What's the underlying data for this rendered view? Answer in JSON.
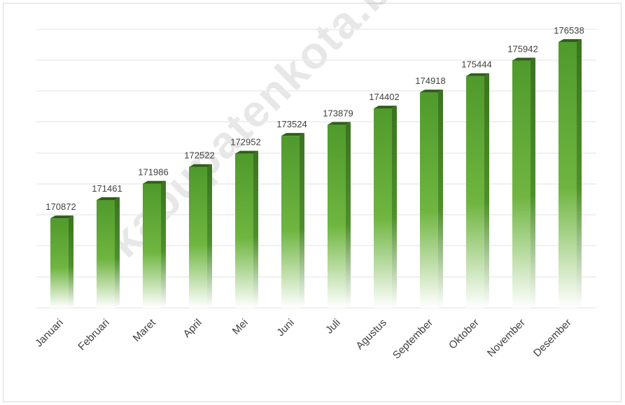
{
  "watermark": "kabupatenkota.bps.go.id",
  "colors": {
    "bar_top": "#4f9a2c",
    "bar_mid": "#72b643",
    "bar_side": "#3e7a22",
    "bar_cap": "#2f5e18",
    "gridline": "#ececec",
    "value_label": "#404040",
    "tick_label": "#404040"
  },
  "chart_data": {
    "type": "bar",
    "categories": [
      "Januari",
      "Februari",
      "Maret",
      "April",
      "Mei",
      "Juni",
      "Juli",
      "Agustus",
      "September",
      "Oktober",
      "November",
      "Desember"
    ],
    "values": [
      170872,
      171461,
      171986,
      172522,
      172952,
      173524,
      173879,
      174402,
      174918,
      175444,
      175942,
      176538
    ],
    "title": "",
    "xlabel": "",
    "ylabel": "",
    "ylim": [
      168000,
      177000
    ],
    "grid": true,
    "data_labels": true,
    "legend": "none",
    "style": "3d-gradient"
  }
}
